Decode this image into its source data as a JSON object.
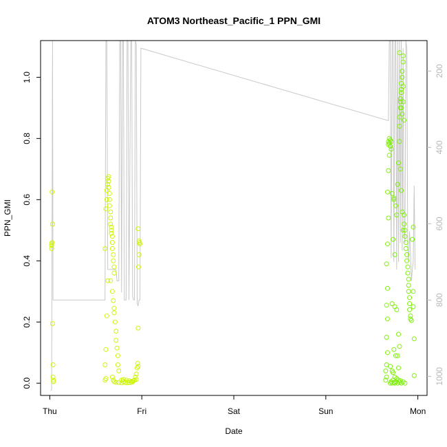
{
  "chart_data": {
    "type": "scatter",
    "title": "ATOM3 Northeast_Pacific_1 PPN_GMI",
    "xlabel": "Date",
    "ylabel": "PPN_GMI",
    "x_ticks": [
      "Thu",
      "Fri",
      "Sat",
      "Sun",
      "Mon"
    ],
    "y_ticks": [
      "0.0",
      "0.2",
      "0.4",
      "0.6",
      "0.8",
      "1.0"
    ],
    "y2_ticks": [
      "200",
      "400",
      "600",
      "800",
      "1000"
    ],
    "xlim_days": [
      -0.1,
      4.1
    ],
    "ylim": [
      -0.04,
      1.12
    ],
    "y2lim": [
      1050,
      120
    ],
    "y2_reversed": true,
    "grid": false,
    "colors": {
      "points_early": "#ccf50a",
      "points_late": "#7ef00a",
      "altitude_line": "#c8c8c8",
      "axes": "#000000",
      "right_axis": "#b8b8b8"
    },
    "series": [
      {
        "marker": "open-circle",
        "points": [
          [
            0.02,
            0.455
          ],
          [
            0.02,
            0.45
          ],
          [
            0.025,
            0.46
          ],
          [
            0.02,
            0.44
          ],
          [
            0.03,
            0.52
          ],
          [
            0.025,
            0.625
          ],
          [
            0.03,
            0.195
          ],
          [
            0.035,
            0.06
          ],
          [
            0.035,
            0.02
          ],
          [
            0.04,
            0.01
          ],
          [
            0.04,
            0.005
          ],
          [
            0.6,
            0.01
          ],
          [
            0.61,
            0.015
          ],
          [
            0.6,
            0.06
          ],
          [
            0.61,
            0.11
          ],
          [
            0.62,
            0.22
          ],
          [
            0.6,
            0.44
          ],
          [
            0.61,
            0.57
          ],
          [
            0.62,
            0.6
          ],
          [
            0.62,
            0.63
          ],
          [
            0.63,
            0.65
          ],
          [
            0.63,
            0.67
          ],
          [
            0.64,
            0.675
          ],
          [
            0.64,
            0.66
          ],
          [
            0.64,
            0.64
          ],
          [
            0.65,
            0.62
          ],
          [
            0.65,
            0.6
          ],
          [
            0.65,
            0.58
          ],
          [
            0.66,
            0.56
          ],
          [
            0.66,
            0.54
          ],
          [
            0.66,
            0.52
          ],
          [
            0.67,
            0.51
          ],
          [
            0.67,
            0.5
          ],
          [
            0.67,
            0.49
          ],
          [
            0.68,
            0.48
          ],
          [
            0.68,
            0.46
          ],
          [
            0.68,
            0.44
          ],
          [
            0.69,
            0.42
          ],
          [
            0.69,
            0.4
          ],
          [
            0.7,
            0.38
          ],
          [
            0.7,
            0.36
          ],
          [
            0.63,
            0.335
          ],
          [
            0.66,
            0.335
          ],
          [
            0.68,
            0.3
          ],
          [
            0.69,
            0.27
          ],
          [
            0.7,
            0.245
          ],
          [
            0.7,
            0.23
          ],
          [
            0.71,
            0.2
          ],
          [
            0.72,
            0.17
          ],
          [
            0.72,
            0.14
          ],
          [
            0.73,
            0.115
          ],
          [
            0.74,
            0.09
          ],
          [
            0.74,
            0.06
          ],
          [
            0.75,
            0.04
          ],
          [
            0.68,
            0.02
          ],
          [
            0.69,
            0.01
          ],
          [
            0.7,
            0.005
          ],
          [
            0.72,
            0.003
          ],
          [
            0.75,
            0.002
          ],
          [
            0.78,
            0.001
          ],
          [
            0.8,
            0.005
          ],
          [
            0.82,
            0.002
          ],
          [
            0.84,
            0.001
          ],
          [
            0.86,
            0.003
          ],
          [
            0.88,
            0.002
          ],
          [
            0.9,
            0.004
          ],
          [
            0.92,
            0.01
          ],
          [
            0.93,
            0.02
          ],
          [
            0.94,
            0.03
          ],
          [
            0.95,
            0.05
          ],
          [
            0.955,
            0.065
          ],
          [
            0.96,
            0.055
          ],
          [
            0.78,
            0.01
          ],
          [
            0.8,
            0.012
          ],
          [
            0.83,
            0.01
          ],
          [
            0.86,
            0.008
          ],
          [
            0.89,
            0.006
          ],
          [
            0.91,
            0.008
          ],
          [
            0.94,
            0.012
          ],
          [
            0.96,
            0.505
          ],
          [
            0.97,
            0.465
          ],
          [
            0.975,
            0.46
          ],
          [
            0.98,
            0.455
          ],
          [
            0.97,
            0.42
          ],
          [
            0.965,
            0.38
          ],
          [
            0.96,
            0.18
          ]
        ]
      },
      {
        "marker": "open-circle",
        "points": [
          [
            3.65,
            0.01
          ],
          [
            3.66,
            0.02
          ],
          [
            3.65,
            0.04
          ],
          [
            3.66,
            0.06
          ],
          [
            3.67,
            0.1
          ],
          [
            3.66,
            0.15
          ],
          [
            3.67,
            0.21
          ],
          [
            3.66,
            0.255
          ],
          [
            3.67,
            0.31
          ],
          [
            3.66,
            0.39
          ],
          [
            3.67,
            0.455
          ],
          [
            3.68,
            0.54
          ],
          [
            3.67,
            0.625
          ],
          [
            3.68,
            0.695
          ],
          [
            3.69,
            0.745
          ],
          [
            3.68,
            0.78
          ],
          [
            3.68,
            0.79
          ],
          [
            3.69,
            0.8
          ],
          [
            3.69,
            0.785
          ],
          [
            3.7,
            0.795
          ],
          [
            3.7,
            0.775
          ],
          [
            3.71,
            0.79
          ],
          [
            3.71,
            0.765
          ],
          [
            3.7,
            0.0
          ],
          [
            3.71,
            0.005
          ],
          [
            3.72,
            0.0
          ],
          [
            3.73,
            0.01
          ],
          [
            3.74,
            0.002
          ],
          [
            3.75,
            0.0
          ],
          [
            3.76,
            0.005
          ],
          [
            3.78,
            0.0
          ],
          [
            3.8,
            0.003
          ],
          [
            3.82,
            0.0
          ],
          [
            3.84,
            0.004
          ],
          [
            3.86,
            0.0
          ],
          [
            3.73,
            0.47
          ],
          [
            3.72,
            0.62
          ],
          [
            3.74,
            0.605
          ],
          [
            3.74,
            0.6
          ],
          [
            3.75,
            0.42
          ],
          [
            3.76,
            0.58
          ],
          [
            3.77,
            0.55
          ],
          [
            3.78,
            0.65
          ],
          [
            3.79,
            0.72
          ],
          [
            3.8,
            0.84
          ],
          [
            3.8,
            0.87
          ],
          [
            3.81,
            0.9
          ],
          [
            3.81,
            0.93
          ],
          [
            3.82,
            0.96
          ],
          [
            3.82,
            0.98
          ],
          [
            3.83,
            1.0
          ],
          [
            3.83,
            1.02
          ],
          [
            3.84,
            1.05
          ],
          [
            3.84,
            1.07
          ],
          [
            3.8,
            1.08
          ],
          [
            3.81,
            0.92
          ],
          [
            3.82,
            0.95
          ],
          [
            3.82,
            0.9
          ],
          [
            3.83,
            0.88
          ],
          [
            3.84,
            0.97
          ],
          [
            3.84,
            0.92
          ],
          [
            3.85,
            0.86
          ],
          [
            3.8,
            0.79
          ],
          [
            3.81,
            0.7
          ],
          [
            3.82,
            0.63
          ],
          [
            3.83,
            0.56
          ],
          [
            3.84,
            0.5
          ],
          [
            3.85,
            0.55
          ],
          [
            3.85,
            0.52
          ],
          [
            3.86,
            0.5
          ],
          [
            3.86,
            0.48
          ],
          [
            3.87,
            0.46
          ],
          [
            3.87,
            0.44
          ],
          [
            3.88,
            0.42
          ],
          [
            3.88,
            0.4
          ],
          [
            3.89,
            0.38
          ],
          [
            3.89,
            0.36
          ],
          [
            3.9,
            0.34
          ],
          [
            3.9,
            0.32
          ],
          [
            3.9,
            0.3
          ],
          [
            3.91,
            0.28
          ],
          [
            3.91,
            0.26
          ],
          [
            3.91,
            0.24
          ],
          [
            3.92,
            0.22
          ],
          [
            3.92,
            0.21
          ],
          [
            3.93,
            0.205
          ],
          [
            3.95,
            0.3
          ],
          [
            3.95,
            0.25
          ],
          [
            3.94,
            0.47
          ],
          [
            3.95,
            0.51
          ],
          [
            3.96,
            0.145
          ],
          [
            3.96,
            0.025
          ],
          [
            3.72,
            0.26
          ],
          [
            3.75,
            0.25
          ],
          [
            3.77,
            0.24
          ],
          [
            3.79,
            0.16
          ],
          [
            3.8,
            0.12
          ],
          [
            3.74,
            0.11
          ],
          [
            3.76,
            0.09
          ],
          [
            3.78,
            0.09
          ],
          [
            3.79,
            0.05
          ],
          [
            3.7,
            0.055
          ],
          [
            3.72,
            0.04
          ],
          [
            3.73,
            0.035
          ],
          [
            3.75,
            0.02
          ],
          [
            3.77,
            0.015
          ],
          [
            3.79,
            0.01
          ],
          [
            3.81,
            0.008
          ]
        ]
      }
    ],
    "altitude_line": [
      [
        0.01,
        1038
      ],
      [
        0.02,
        1035
      ],
      [
        0.03,
        120
      ],
      [
        0.035,
        800
      ],
      [
        0.6,
        800
      ],
      [
        0.61,
        120
      ],
      [
        0.62,
        120
      ],
      [
        0.63,
        720
      ],
      [
        0.65,
        720
      ],
      [
        0.72,
        720
      ],
      [
        0.73,
        750
      ],
      [
        0.75,
        750
      ],
      [
        0.76,
        120
      ],
      [
        0.77,
        120
      ],
      [
        0.78,
        780
      ],
      [
        0.79,
        120
      ],
      [
        0.8,
        120
      ],
      [
        0.81,
        800
      ],
      [
        0.83,
        800
      ],
      [
        0.84,
        120
      ],
      [
        0.85,
        120
      ],
      [
        0.86,
        800
      ],
      [
        0.88,
        120
      ],
      [
        0.89,
        120
      ],
      [
        0.9,
        790
      ],
      [
        0.91,
        800
      ],
      [
        0.92,
        800
      ],
      [
        0.93,
        120
      ],
      [
        0.94,
        130
      ],
      [
        0.95,
        810
      ],
      [
        0.96,
        815
      ],
      [
        0.97,
        800
      ],
      [
        0.98,
        800
      ],
      [
        0.99,
        140
      ],
      [
        3.68,
        330
      ],
      [
        3.69,
        120
      ],
      [
        3.7,
        120
      ],
      [
        3.71,
        690
      ],
      [
        3.72,
        120
      ],
      [
        3.73,
        120
      ],
      [
        3.74,
        700
      ],
      [
        3.75,
        120
      ],
      [
        3.76,
        120
      ],
      [
        3.77,
        720
      ],
      [
        3.78,
        120
      ],
      [
        3.79,
        700
      ],
      [
        3.8,
        120
      ],
      [
        3.81,
        650
      ],
      [
        3.82,
        120
      ],
      [
        3.83,
        670
      ],
      [
        3.84,
        140
      ],
      [
        3.85,
        620
      ],
      [
        3.86,
        650
      ],
      [
        3.87,
        120
      ],
      [
        3.88,
        140
      ],
      [
        3.89,
        660
      ],
      [
        3.9,
        700
      ],
      [
        3.91,
        620
      ],
      [
        3.92,
        680
      ],
      [
        3.93,
        750
      ],
      [
        3.94,
        720
      ],
      [
        3.95,
        700
      ],
      [
        3.96,
        500
      ],
      [
        3.97,
        720
      ]
    ]
  }
}
